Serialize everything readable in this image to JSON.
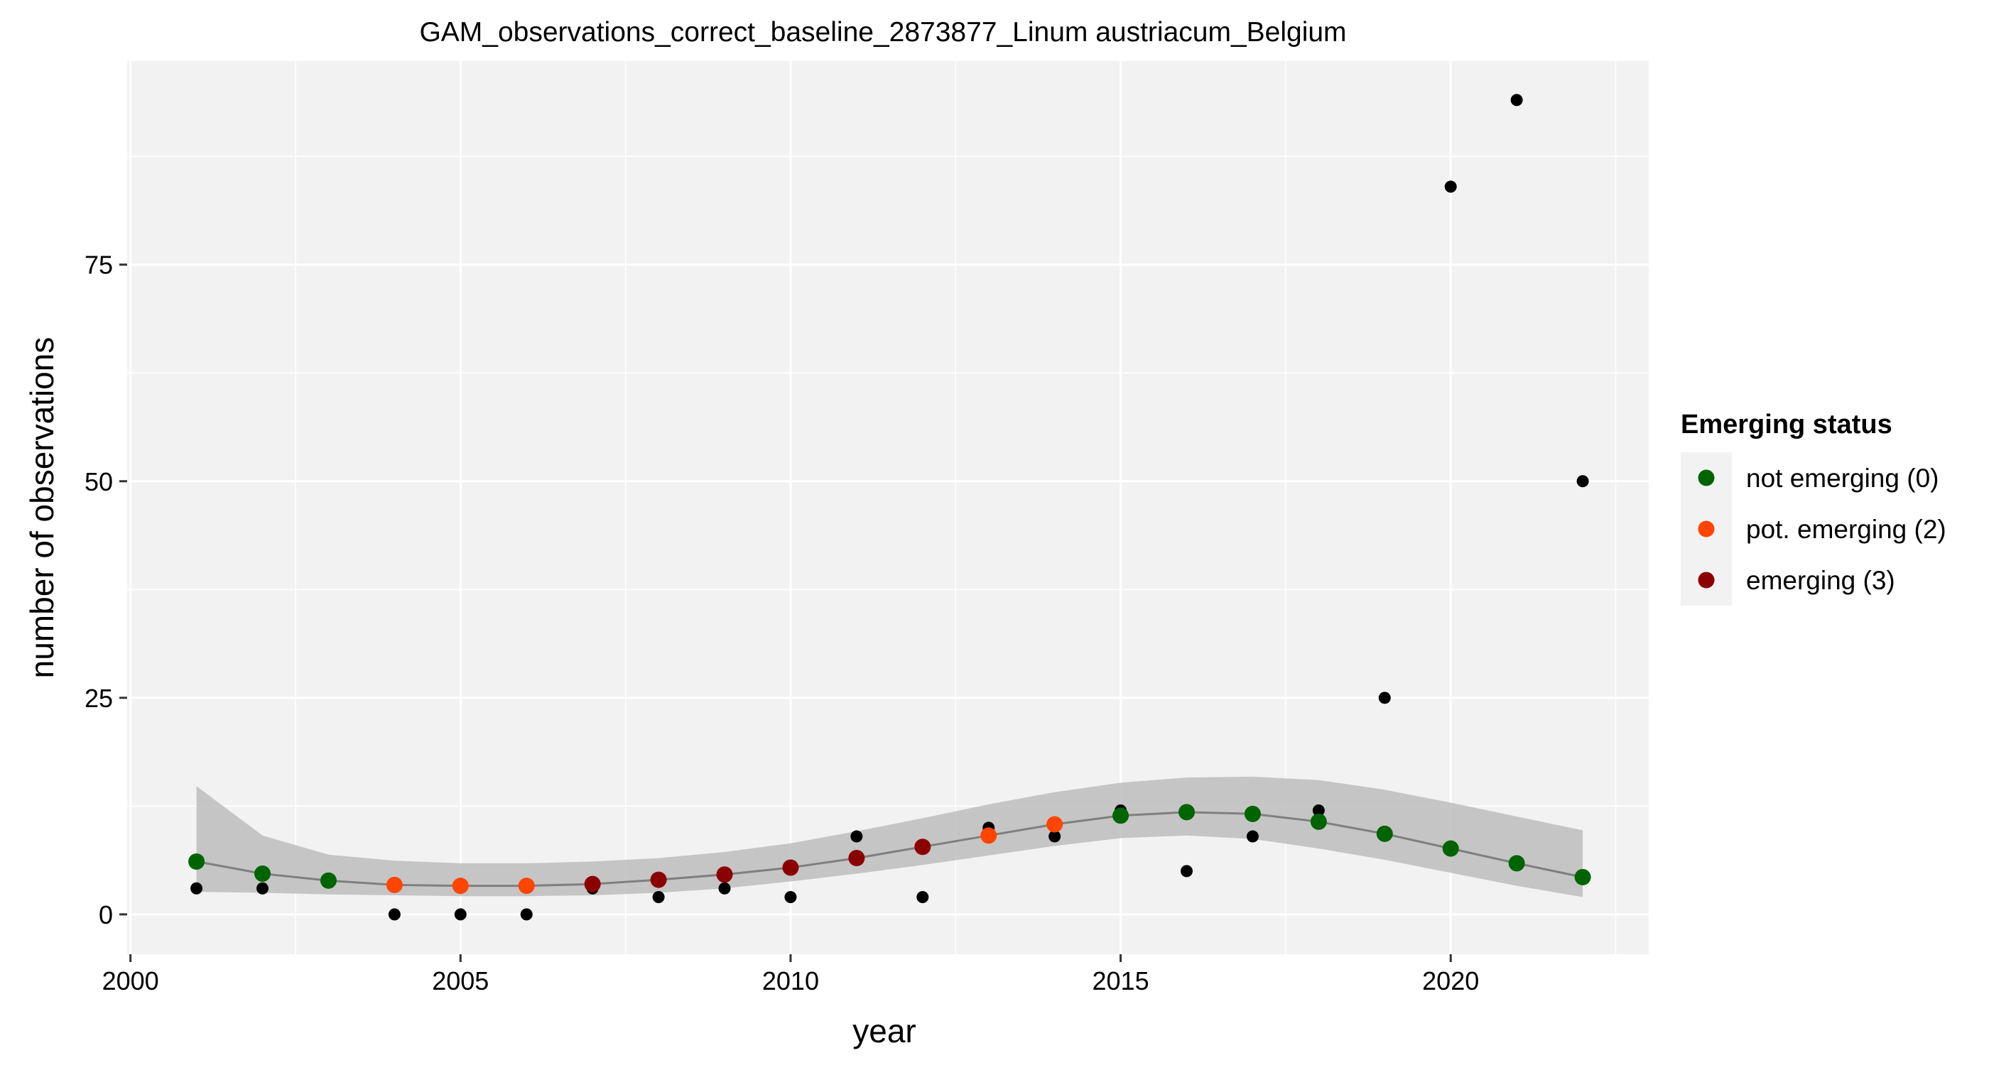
{
  "chart_data": {
    "type": "scatter",
    "title": "GAM_observations_correct_baseline_2873877_Linum austriacum_Belgium",
    "xlabel": "year",
    "ylabel": "number of observations",
    "xlim": [
      1999.95,
      2023.0
    ],
    "ylim": [
      -4.6,
      98.5
    ],
    "x_ticks": [
      2000,
      2005,
      2010,
      2015,
      2020
    ],
    "y_ticks": [
      0,
      25,
      50,
      75
    ],
    "x_tick_labels": [
      "2000",
      "2005",
      "2010",
      "2015",
      "2020"
    ],
    "y_tick_labels": [
      "0",
      "25",
      "50",
      "75"
    ],
    "grid": true,
    "legend": {
      "title": "Emerging status",
      "position": "right",
      "entries": [
        {
          "label": "not emerging (0)",
          "status": 0
        },
        {
          "label": "pot. emerging (2)",
          "status": 2
        },
        {
          "label": "emerging (3)",
          "status": 3
        }
      ]
    },
    "colors": {
      "panel_background": "#f2f2f2",
      "grid": "#ffffff",
      "observed": "#000000",
      "ribbon": "#bdbdbd",
      "fit_line": "#7f7f7f",
      "status_0": "#006400",
      "status_2": "#ff4500",
      "status_3": "#8b0000",
      "legend_key_background": "#f2f2f2"
    },
    "observed": {
      "x": [
        2001,
        2002,
        2003,
        2004,
        2005,
        2006,
        2007,
        2008,
        2009,
        2010,
        2011,
        2012,
        2013,
        2014,
        2015,
        2016,
        2017,
        2018,
        2019,
        2020,
        2021,
        2022
      ],
      "y": [
        3,
        3,
        4,
        0,
        0,
        0,
        3,
        2,
        3,
        2,
        9,
        2,
        10,
        9,
        12,
        5,
        9,
        12,
        25,
        84,
        94,
        50
      ]
    },
    "fitted": {
      "x": [
        2001,
        2002,
        2003,
        2004,
        2005,
        2006,
        2007,
        2008,
        2009,
        2010,
        2011,
        2012,
        2013,
        2014,
        2015,
        2016,
        2017,
        2018,
        2019,
        2020,
        2021,
        2022
      ],
      "y": [
        6.1,
        4.7,
        3.9,
        3.4,
        3.3,
        3.3,
        3.5,
        4.0,
        4.6,
        5.4,
        6.5,
        7.8,
        9.1,
        10.4,
        11.4,
        11.8,
        11.6,
        10.7,
        9.3,
        7.6,
        5.9,
        4.3
      ],
      "lower": [
        2.6,
        2.5,
        2.3,
        2.2,
        2.1,
        2.1,
        2.2,
        2.5,
        3.0,
        3.8,
        4.7,
        5.7,
        6.8,
        7.9,
        8.8,
        9.1,
        8.7,
        7.6,
        6.3,
        4.8,
        3.3,
        2.0
      ],
      "upper": [
        14.8,
        9.1,
        6.9,
        6.2,
        5.9,
        5.9,
        6.1,
        6.5,
        7.2,
        8.2,
        9.6,
        11.1,
        12.7,
        14.1,
        15.2,
        15.8,
        15.9,
        15.5,
        14.4,
        12.9,
        11.3,
        9.7
      ],
      "status": [
        0,
        0,
        0,
        2,
        2,
        2,
        3,
        3,
        3,
        3,
        3,
        3,
        2,
        2,
        0,
        0,
        0,
        0,
        0,
        0,
        0,
        0
      ]
    }
  }
}
